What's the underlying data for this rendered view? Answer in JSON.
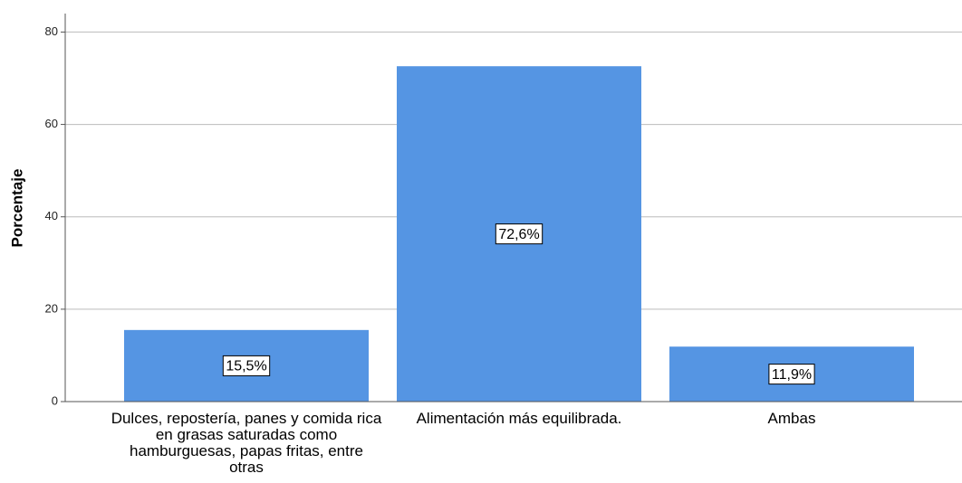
{
  "chart_data": {
    "type": "bar",
    "y_label": "Porcentaje",
    "categories": [
      "Dulces, repostería, panes y comida rica en grasas saturadas como hamburguesas, papas fritas, entre otras",
      "Alimentación más equilibrada.",
      "Ambas"
    ],
    "values": [
      15.5,
      72.6,
      11.9
    ],
    "value_labels": [
      "15,5%",
      "72,6%",
      "11,9%"
    ],
    "color": "#5595e3",
    "ylim": [
      0,
      84
    ],
    "yticks": [
      0,
      20,
      40,
      60,
      80
    ],
    "grid": true
  }
}
